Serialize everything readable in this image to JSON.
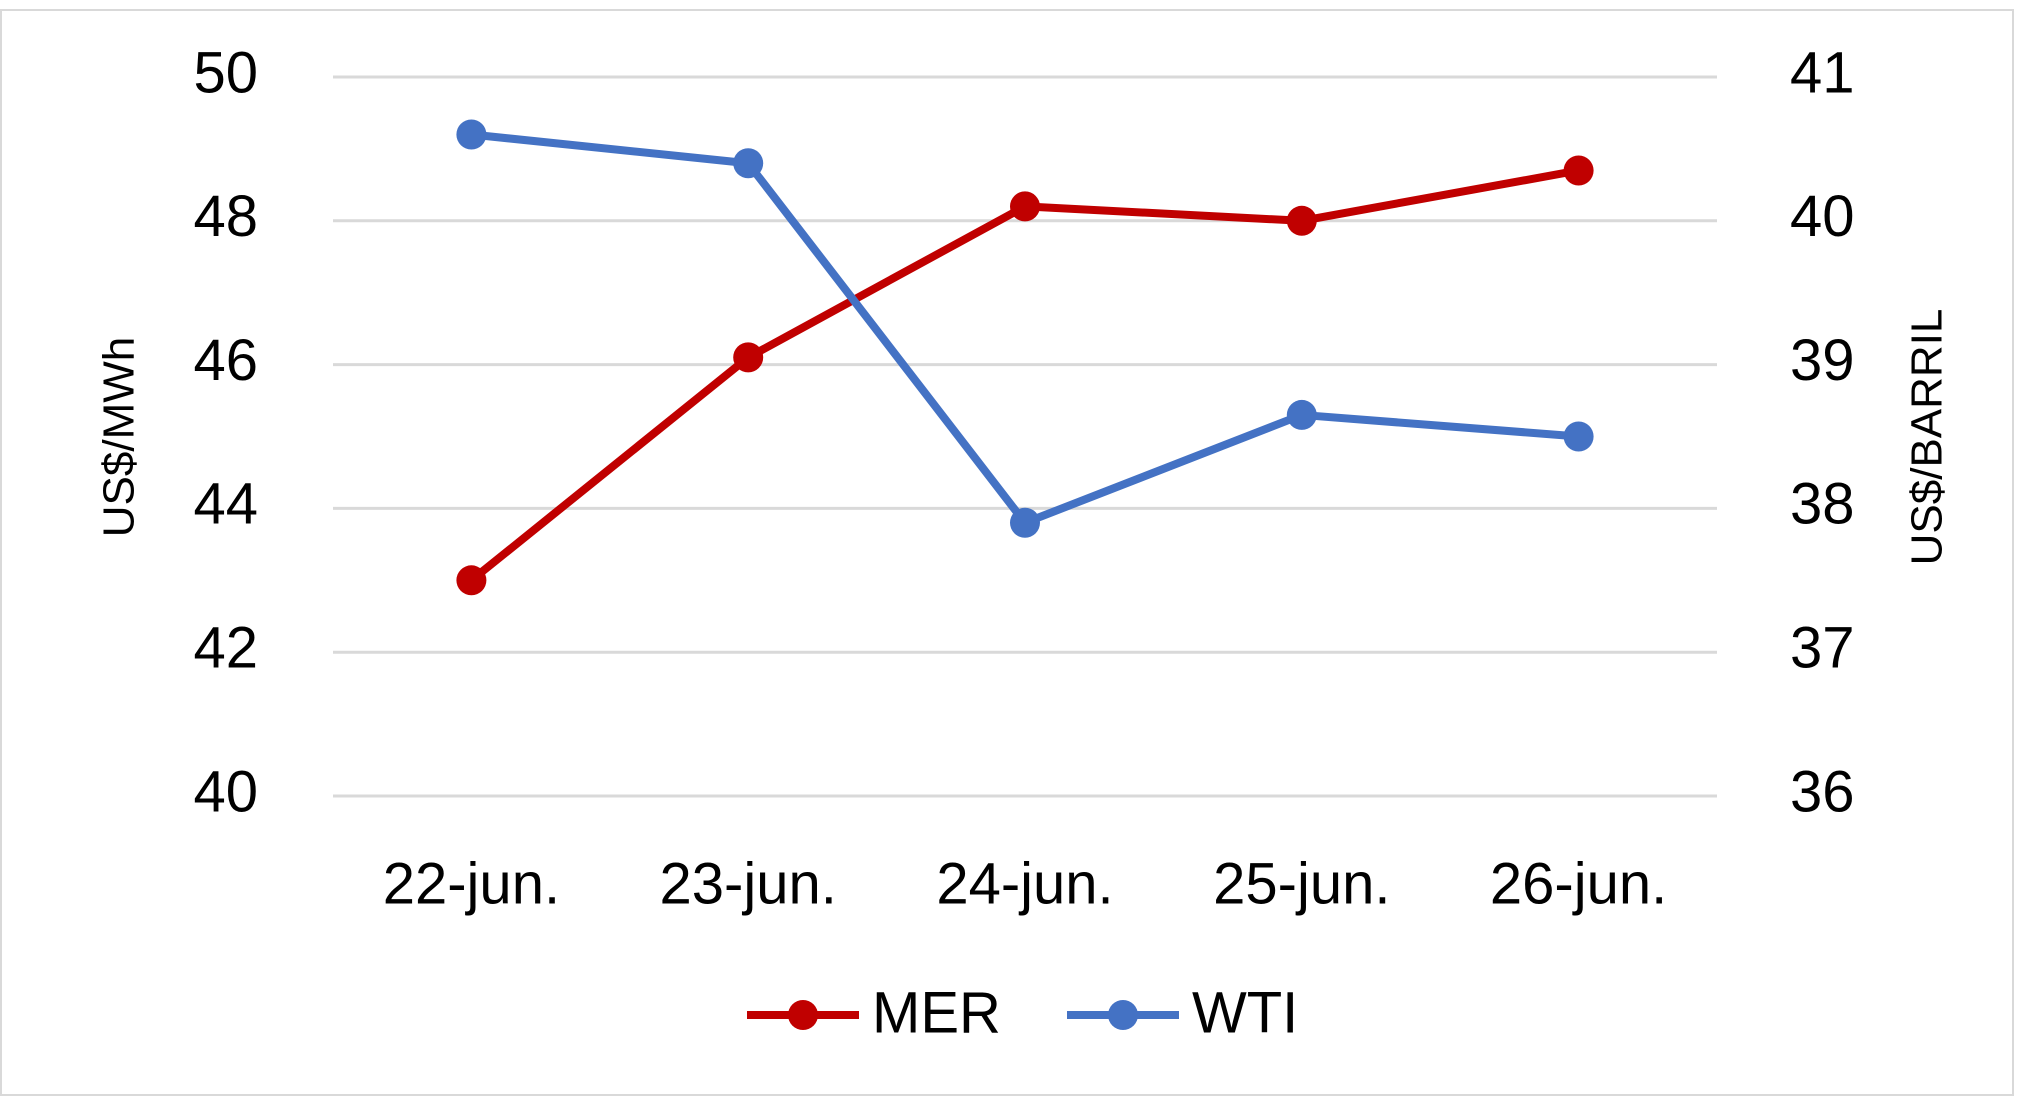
{
  "chart_data": {
    "type": "line",
    "categories": [
      "22-jun.",
      "23-jun.",
      "24-jun.",
      "25-jun.",
      "26-jun."
    ],
    "series": [
      {
        "name": "MER",
        "color": "#c00000",
        "values": [
          43.0,
          46.1,
          48.2,
          48.0,
          48.7
        ]
      },
      {
        "name": "WTI",
        "color": "#4472c4",
        "axis": "y2",
        "values": [
          40.6,
          40.4,
          37.9,
          38.65,
          38.5
        ]
      }
    ],
    "y_label": "US$/MWh",
    "y2_label": "US$/BARRIL",
    "ylim": [
      40,
      50
    ],
    "yticks": [
      40,
      42,
      44,
      46,
      48,
      50
    ],
    "y2lim": [
      36,
      41
    ],
    "y2ticks": [
      36,
      37,
      38,
      39,
      40,
      41
    ],
    "grid": true,
    "legend": "bottom"
  }
}
